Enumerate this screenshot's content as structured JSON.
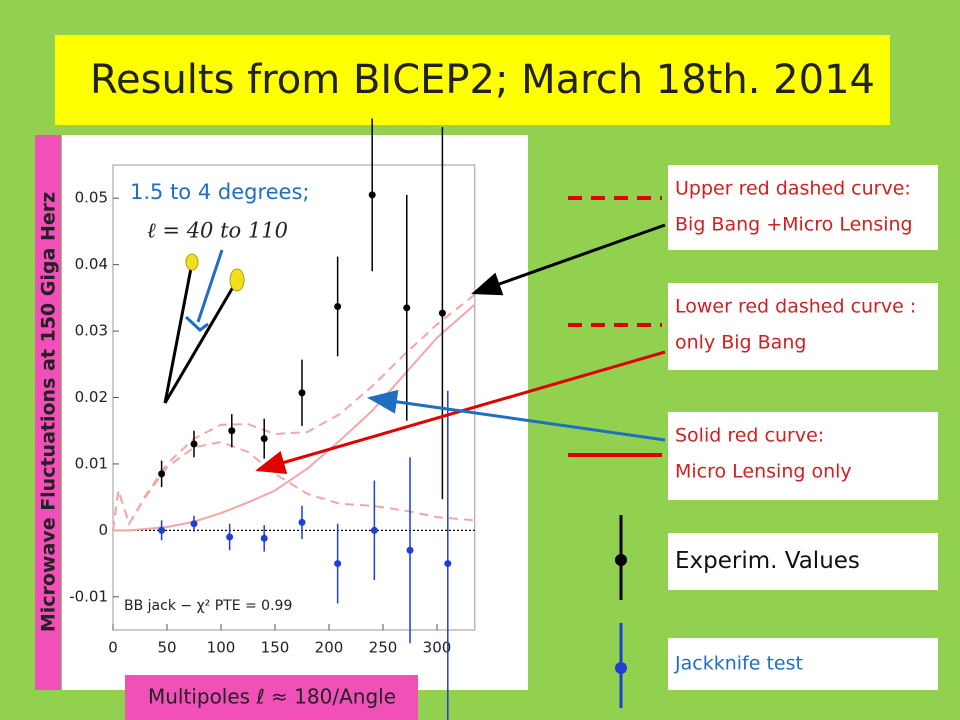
{
  "chart_data": {
    "type": "line",
    "title": "Results from BICEP2; March 18th. 2014",
    "x_label": "Multipoles ℓ ≈ 180/Angle",
    "y_label": "Microwave Fluctuations at 150 Giga Herz",
    "annotations": [
      "1.5 to 4 degrees;",
      "ℓ = 40 to 110",
      "BB jack − χ² PTE = 0.99"
    ],
    "xlim": [
      0,
      335
    ],
    "ylim": [
      -0.015,
      0.055
    ],
    "xticks": [
      0,
      50,
      100,
      150,
      200,
      250,
      300
    ],
    "yticks": [
      -0.01,
      0,
      0.01,
      0.02,
      0.03,
      0.04,
      0.05
    ],
    "zero_line": true,
    "series": [
      {
        "name": "Upper red dashed curve:",
        "description": "Big Bang +Micro Lensing",
        "type": "line",
        "dash": true,
        "color": "#f4a6a6",
        "x": [
          0,
          5,
          15,
          30,
          50,
          75,
          100,
          125,
          150,
          180,
          210,
          240,
          270,
          300,
          335
        ],
        "values": [
          0,
          0.006,
          0.001,
          0.0052,
          0.01,
          0.0138,
          0.0159,
          0.016,
          0.0145,
          0.0148,
          0.0175,
          0.0217,
          0.0265,
          0.031,
          0.0355
        ]
      },
      {
        "name": "Lower red dashed curve :",
        "description": "only Big Bang",
        "type": "line",
        "dash": true,
        "color": "#f4a6a6",
        "x": [
          0,
          5,
          15,
          30,
          50,
          75,
          100,
          125,
          150,
          180,
          210,
          240,
          270,
          300,
          335
        ],
        "values": [
          0,
          0.006,
          0.001,
          0.005,
          0.0095,
          0.0125,
          0.0133,
          0.0118,
          0.0085,
          0.0055,
          0.004,
          0.0037,
          0.003,
          0.002,
          0.0015
        ]
      },
      {
        "name": "Solid red curve:",
        "description": "Micro Lensing only",
        "type": "line",
        "dash": false,
        "color": "#f4a6a6",
        "x": [
          0,
          5,
          15,
          30,
          50,
          75,
          100,
          125,
          150,
          180,
          210,
          240,
          270,
          300,
          335
        ],
        "values": [
          0,
          0,
          0,
          0.0002,
          0.0005,
          0.0013,
          0.0026,
          0.0042,
          0.006,
          0.0093,
          0.0135,
          0.018,
          0.0235,
          0.029,
          0.034
        ]
      },
      {
        "name": "Experim. Values",
        "type": "errorbar",
        "color": "#000000",
        "x": [
          45,
          75,
          110,
          140,
          175,
          208,
          240,
          272,
          305
        ],
        "values": [
          0.0085,
          0.013,
          0.015,
          0.0138,
          0.0207,
          0.0337,
          0.0505,
          0.0335,
          0.0327
        ],
        "errors": [
          0.002,
          0.002,
          0.0025,
          0.003,
          0.005,
          0.0075,
          0.0115,
          0.017,
          0.028
        ]
      },
      {
        "name": "Jackknife test",
        "type": "errorbar",
        "color": "#1f3fd0",
        "x": [
          45,
          75,
          108,
          140,
          175,
          208,
          242,
          275,
          310
        ],
        "values": [
          0,
          0.001,
          -0.001,
          -0.0012,
          0.0012,
          -0.005,
          0,
          -0.003,
          -0.005
        ],
        "errors": [
          0.0015,
          0.0012,
          0.002,
          0.002,
          0.0025,
          0.006,
          0.0075,
          0.014,
          0.026
        ]
      }
    ]
  }
}
